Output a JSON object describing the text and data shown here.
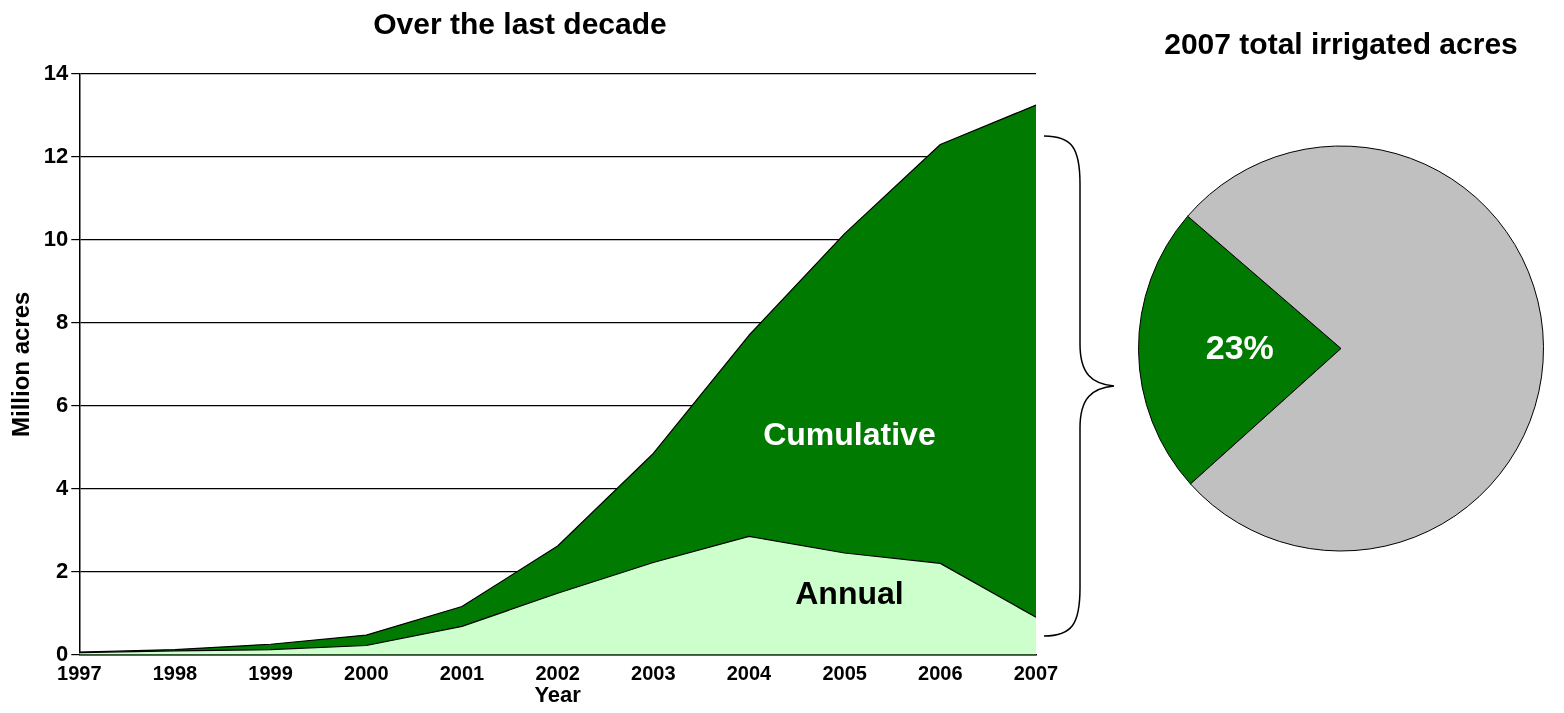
{
  "chart_data": [
    {
      "type": "area",
      "title": "Over the last decade",
      "xlabel": "Year",
      "ylabel": "Million acres",
      "categories": [
        "1997",
        "1998",
        "1999",
        "2000",
        "2001",
        "2002",
        "2003",
        "2004",
        "2005",
        "2006",
        "2007"
      ],
      "series": [
        {
          "name": "Cumulative",
          "color": "#007a00",
          "values": [
            0.06,
            0.12,
            0.25,
            0.47,
            1.16,
            2.62,
            4.85,
            7.7,
            10.15,
            12.3,
            13.25
          ]
        },
        {
          "name": "Annual",
          "color": "#ccffcc",
          "values": [
            0.05,
            0.09,
            0.12,
            0.22,
            0.68,
            1.48,
            2.22,
            2.85,
            2.45,
            2.2,
            0.9
          ]
        }
      ],
      "ylim": [
        0,
        14
      ],
      "yticks": [
        0,
        2,
        4,
        6,
        8,
        10,
        12,
        14
      ],
      "grid": "y",
      "legend": false,
      "marker": "none"
    },
    {
      "type": "pie",
      "title": "2007 total irrigated acres",
      "categories": [
        null,
        null
      ],
      "values": [
        23,
        77
      ],
      "colors": [
        "#007a00",
        "#c0c0c0"
      ],
      "value_labels": [
        "23%",
        null
      ],
      "legend": false
    }
  ]
}
